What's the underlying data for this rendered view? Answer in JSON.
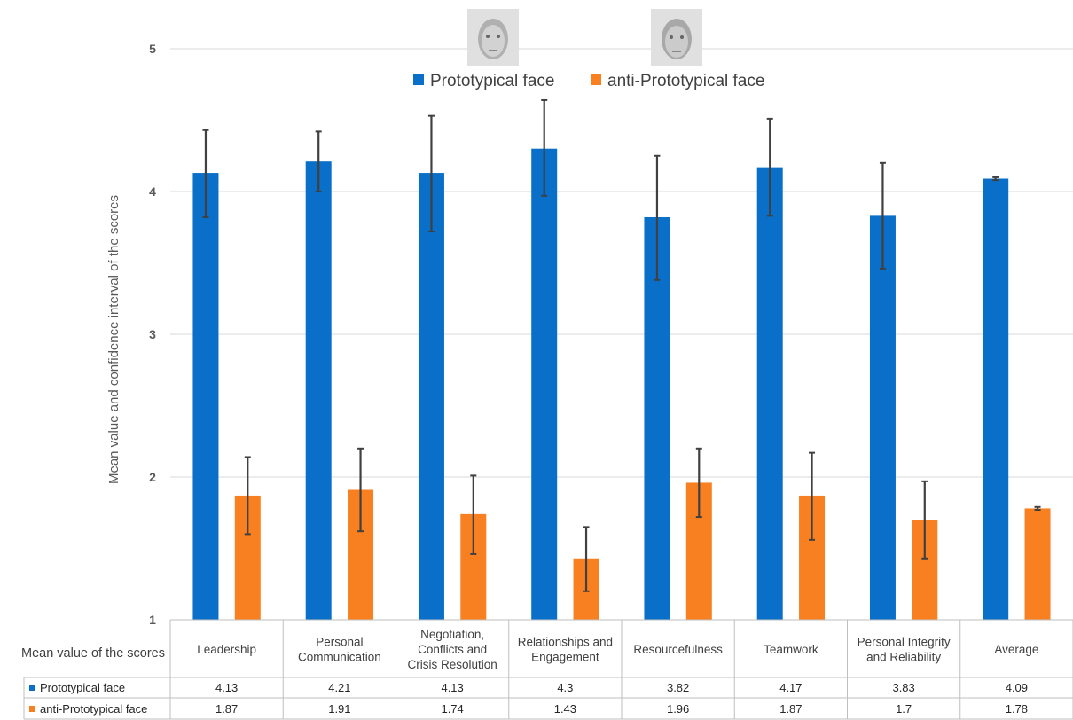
{
  "chart_data": {
    "type": "bar",
    "ylabel": "Mean value and confidence interval of the scores",
    "ylim": [
      1,
      5
    ],
    "yticks": [
      "1",
      "2",
      "3",
      "4",
      "5"
    ],
    "grid": true,
    "legend_position": "top-center",
    "categories": [
      [
        "Leadership"
      ],
      [
        "Personal",
        "Communication"
      ],
      [
        "Negotiation,",
        "Conflicts and",
        "Crisis Resolution"
      ],
      [
        "Relationships and",
        "Engagement"
      ],
      [
        "Resourcefulness"
      ],
      [
        "Teamwork"
      ],
      [
        "Personal Integrity",
        "and Reliability"
      ],
      [
        "Average"
      ]
    ],
    "table_header": "Mean value of the scores",
    "series": [
      {
        "name": "Prototypical face",
        "color": "#0a6fc8",
        "values": [
          4.13,
          4.21,
          4.13,
          4.3,
          3.82,
          4.17,
          3.83,
          4.09
        ],
        "value_labels": [
          "4.13",
          "4.21",
          "4.13",
          "4.3",
          "3.82",
          "4.17",
          "3.83",
          "4.09"
        ],
        "err_low": [
          3.82,
          4.0,
          3.72,
          3.97,
          3.38,
          3.83,
          3.46,
          4.08
        ],
        "err_high": [
          4.43,
          4.42,
          4.53,
          4.64,
          4.25,
          4.51,
          4.2,
          4.1
        ]
      },
      {
        "name": "anti-Prototypical face",
        "color": "#f98021",
        "values": [
          1.87,
          1.91,
          1.74,
          1.43,
          1.96,
          1.87,
          1.7,
          1.78
        ],
        "value_labels": [
          "1.87",
          "1.91",
          "1.74",
          "1.43",
          "1.96",
          "1.87",
          "1.7",
          "1.78"
        ],
        "err_low": [
          1.6,
          1.62,
          1.46,
          1.2,
          1.72,
          1.56,
          1.43,
          1.77
        ],
        "err_high": [
          2.14,
          2.2,
          2.01,
          1.65,
          2.2,
          2.17,
          1.97,
          1.79
        ]
      }
    ]
  }
}
